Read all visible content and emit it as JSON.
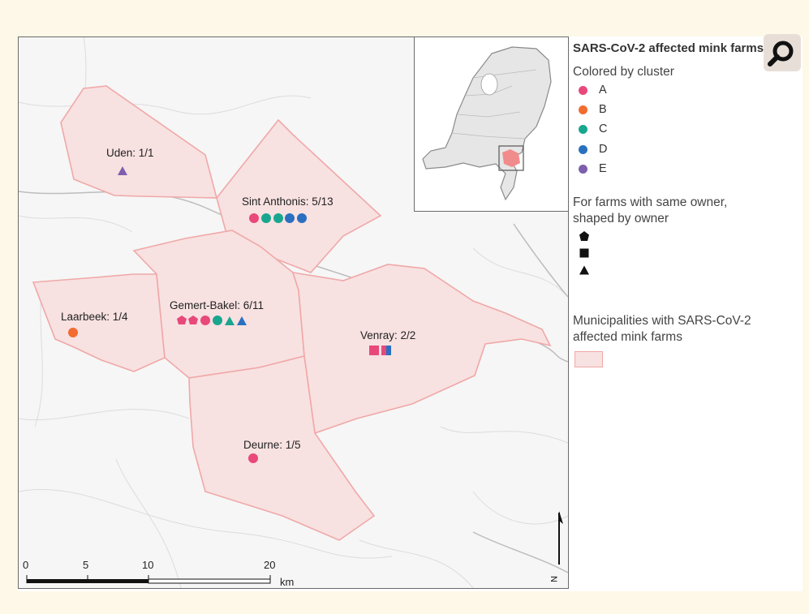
{
  "map": {
    "municipalities": [
      {
        "name": "Uden",
        "label": "Uden: 1/1"
      },
      {
        "name": "Sint Anthonis",
        "label": "Sint Anthonis: 5/13"
      },
      {
        "name": "Laarbeek",
        "label": "Laarbeek: 1/4"
      },
      {
        "name": "Gemert-Bakel",
        "label": "Gemert-Bakel: 6/11"
      },
      {
        "name": "Venray",
        "label": "Venray: 2/2"
      },
      {
        "name": "Deurne",
        "label": "Deurne: 1/5"
      }
    ],
    "scale_bar": {
      "ticks": [
        "0",
        "5",
        "10",
        "20"
      ],
      "unit": "km"
    },
    "north_arrow": "N"
  },
  "legend": {
    "title": "SARS-CoV-2 affected mink farms",
    "cluster_heading": "Colored by cluster",
    "clusters": [
      {
        "label": "A",
        "color": "#e8487a"
      },
      {
        "label": "B",
        "color": "#f26c2f"
      },
      {
        "label": "C",
        "color": "#19a68f"
      },
      {
        "label": "D",
        "color": "#2b70c0"
      },
      {
        "label": "E",
        "color": "#7d5fae"
      }
    ],
    "owner_heading": "For farms with same owner, shaped by owner",
    "owner_shapes": [
      "pentagon-icon",
      "square-icon",
      "triangle-icon"
    ],
    "municipalities_heading": "Municipalities with SARS-CoV-2 affected mink farms"
  },
  "colors": {
    "municipality_fill": "#f8e1e1",
    "municipality_border": "#f0a8a8",
    "page_background": "#fdf8e8"
  }
}
